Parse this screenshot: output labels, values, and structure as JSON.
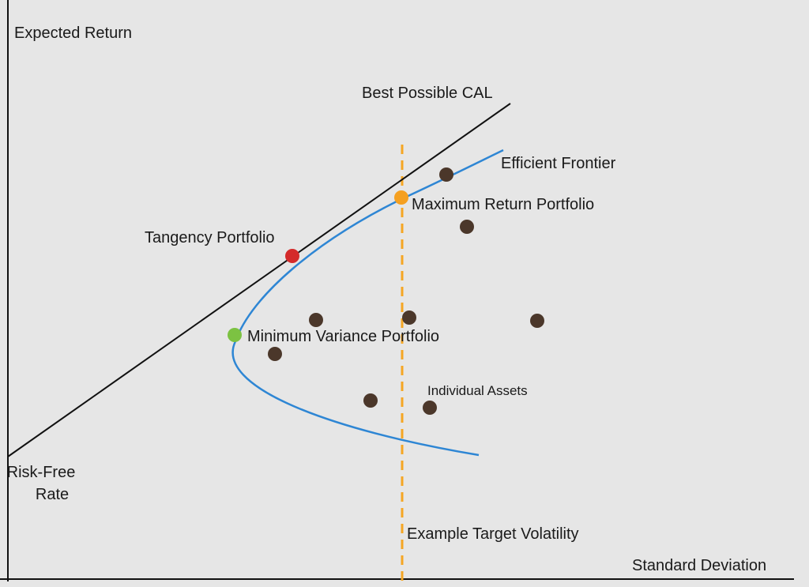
{
  "axes": {
    "y_label": "Expected Return",
    "x_label": "Standard Deviation"
  },
  "labels": {
    "cal": "Best Possible CAL",
    "frontier": "Efficient Frontier",
    "max_return": "Maximum Return Portfolio",
    "tangency": "Tangency Portfolio",
    "min_variance": "Minimum Variance Portfolio",
    "assets": "Individual Assets",
    "risk_free": [
      "Risk-Free",
      "Rate"
    ],
    "target_volatility": "Example Target Volatility"
  }
}
